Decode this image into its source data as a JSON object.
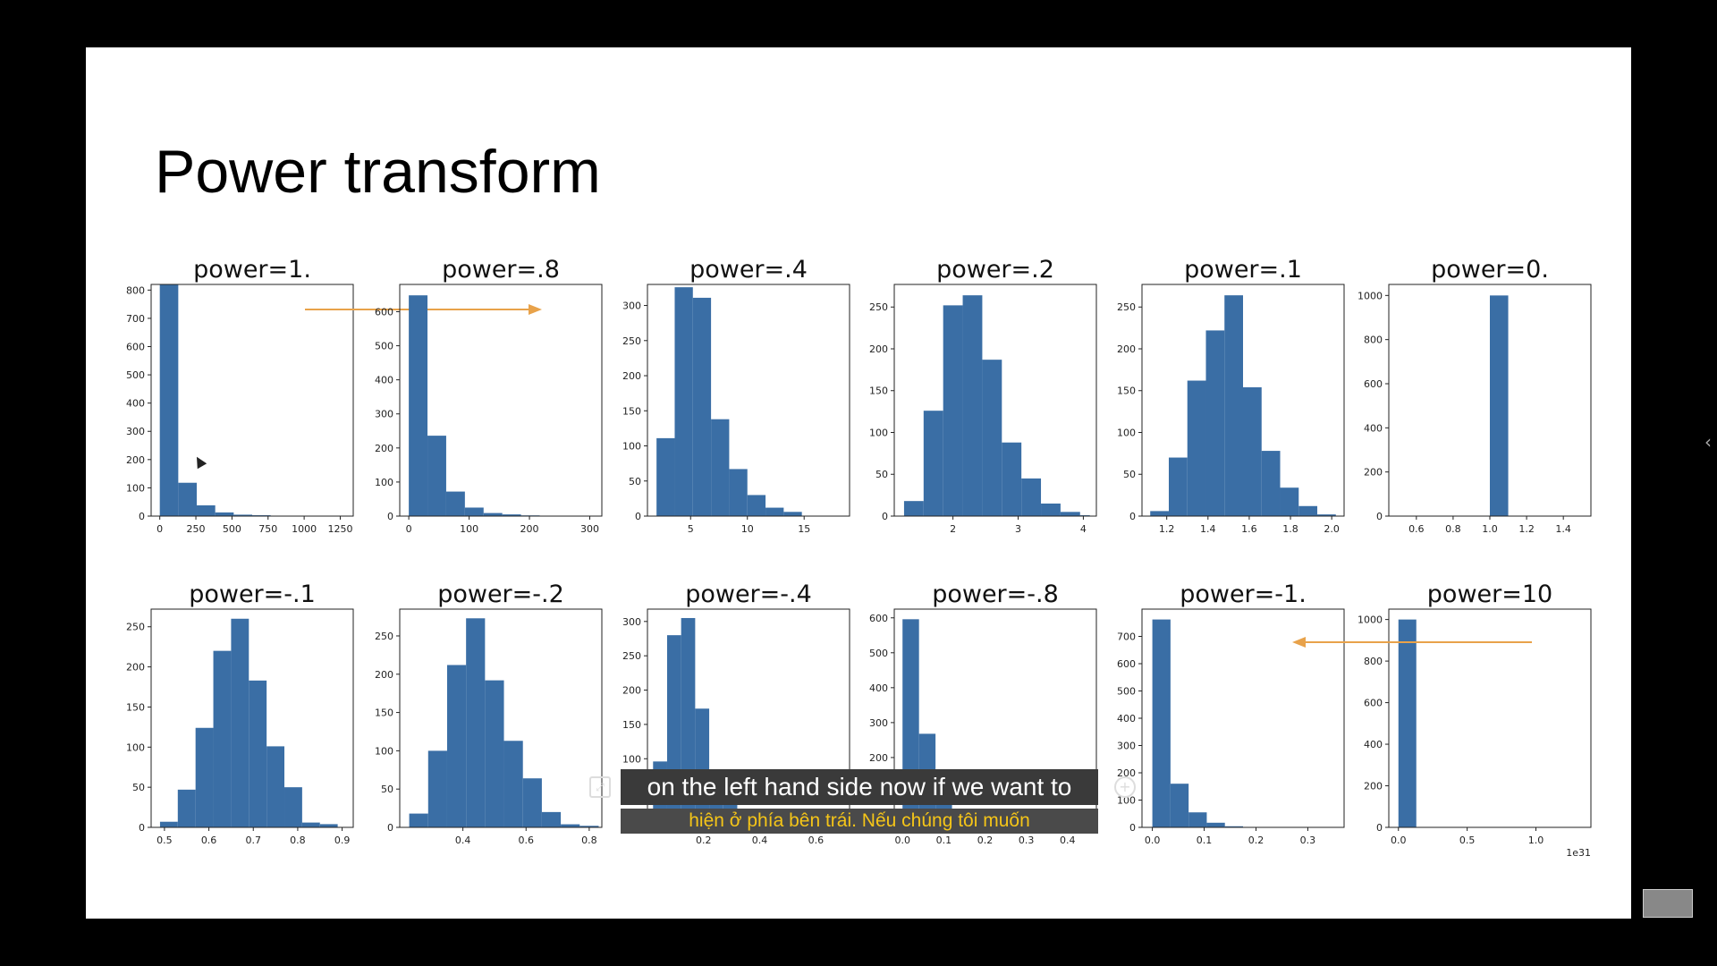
{
  "slide": {
    "title": "Power transform"
  },
  "subtitles": {
    "english": "on the left hand side now if we want to",
    "vietnamese": "hiện ở phía bên trái. Nếu chúng tôi muốn"
  },
  "colors": {
    "bar": "#3a6ea5",
    "arrow": "#e8a24a",
    "background": "#ffffff",
    "frame": "#000000"
  },
  "icons": {
    "cc": "caption-settings-icon",
    "zoom": "zoom-icon",
    "chevron": "chevron-left-icon",
    "cursor": "mouse-pointer-icon"
  },
  "chart_data": [
    {
      "type": "bar",
      "title": "power=1.",
      "x": {
        "ticks": [
          0,
          250,
          500,
          750,
          1000,
          1250
        ],
        "tick_labels": [
          "0",
          "250",
          "500",
          "750",
          "1000",
          "1250"
        ],
        "lim": [
          -60,
          1340
        ]
      },
      "y": {
        "ticks": [
          0,
          100,
          200,
          300,
          400,
          500,
          600,
          700,
          800
        ],
        "tick_labels": [
          "0",
          "100",
          "200",
          "300",
          "400",
          "500",
          "600",
          "700",
          "800"
        ],
        "lim": [
          0,
          820
        ]
      },
      "bins": [
        [
          0,
          128,
          820
        ],
        [
          128,
          256,
          118
        ],
        [
          256,
          384,
          38
        ],
        [
          384,
          512,
          13
        ],
        [
          512,
          640,
          5
        ],
        [
          640,
          768,
          3
        ],
        [
          768,
          896,
          1
        ],
        [
          896,
          1024,
          1
        ],
        [
          1024,
          1152,
          0
        ],
        [
          1152,
          1280,
          1
        ]
      ],
      "annotation": "arrow-right"
    },
    {
      "type": "bar",
      "title": "power=.8",
      "x": {
        "ticks": [
          0,
          100,
          200,
          300
        ],
        "tick_labels": [
          "0",
          "100",
          "200",
          "300"
        ],
        "lim": [
          -15,
          320
        ]
      },
      "y": {
        "ticks": [
          0,
          100,
          200,
          300,
          400,
          500,
          600
        ],
        "tick_labels": [
          "0",
          "100",
          "200",
          "300",
          "400",
          "500",
          "600"
        ],
        "lim": [
          0,
          680
        ]
      },
      "bins": [
        [
          0,
          31,
          648
        ],
        [
          31,
          62,
          236
        ],
        [
          62,
          93,
          72
        ],
        [
          93,
          124,
          25
        ],
        [
          124,
          155,
          9
        ],
        [
          155,
          186,
          5
        ],
        [
          186,
          217,
          2
        ],
        [
          217,
          248,
          1
        ],
        [
          248,
          279,
          1
        ],
        [
          279,
          310,
          1
        ]
      ]
    },
    {
      "type": "bar",
      "title": "power=.4",
      "x": {
        "ticks": [
          5,
          10,
          15
        ],
        "tick_labels": [
          "5",
          "10",
          "15"
        ],
        "lim": [
          1.2,
          19
        ]
      },
      "y": {
        "ticks": [
          0,
          50,
          100,
          150,
          200,
          250,
          300
        ],
        "tick_labels": [
          "0",
          "50",
          "100",
          "150",
          "200",
          "250",
          "300"
        ],
        "lim": [
          0,
          330
        ]
      },
      "bins": [
        [
          2,
          3.6,
          111
        ],
        [
          3.6,
          5.2,
          326
        ],
        [
          5.2,
          6.8,
          311
        ],
        [
          6.8,
          8.4,
          138
        ],
        [
          8.4,
          10,
          67
        ],
        [
          10,
          11.6,
          30
        ],
        [
          11.6,
          13.2,
          12
        ],
        [
          13.2,
          14.8,
          6
        ],
        [
          14.8,
          16.4,
          0
        ],
        [
          16.4,
          18,
          0
        ]
      ]
    },
    {
      "type": "bar",
      "title": "power=.2",
      "x": {
        "ticks": [
          2,
          3,
          4
        ],
        "tick_labels": [
          "2",
          "3",
          "4"
        ],
        "lim": [
          1.1,
          4.2
        ]
      },
      "y": {
        "ticks": [
          0,
          50,
          100,
          150,
          200,
          250
        ],
        "tick_labels": [
          "0",
          "50",
          "100",
          "150",
          "200",
          "250"
        ],
        "lim": [
          0,
          277
        ]
      },
      "bins": [
        [
          1.25,
          1.55,
          18
        ],
        [
          1.55,
          1.85,
          126
        ],
        [
          1.85,
          2.15,
          252
        ],
        [
          2.15,
          2.45,
          264
        ],
        [
          2.45,
          2.75,
          187
        ],
        [
          2.75,
          3.05,
          88
        ],
        [
          3.05,
          3.35,
          45
        ],
        [
          3.35,
          3.65,
          15
        ],
        [
          3.65,
          3.95,
          5
        ],
        [
          3.95,
          4.1,
          1
        ]
      ]
    },
    {
      "type": "bar",
      "title": "power=.1",
      "x": {
        "ticks": [
          1.2,
          1.4,
          1.6,
          1.8,
          2.0
        ],
        "tick_labels": [
          "1.2",
          "1.4",
          "1.6",
          "1.8",
          "2.0"
        ],
        "lim": [
          1.08,
          2.06
        ]
      },
      "y": {
        "ticks": [
          0,
          50,
          100,
          150,
          200,
          250
        ],
        "tick_labels": [
          "0",
          "50",
          "100",
          "150",
          "200",
          "250"
        ],
        "lim": [
          0,
          277
        ]
      },
      "bins": [
        [
          1.12,
          1.21,
          6
        ],
        [
          1.21,
          1.3,
          70
        ],
        [
          1.3,
          1.39,
          162
        ],
        [
          1.39,
          1.48,
          222
        ],
        [
          1.48,
          1.57,
          264
        ],
        [
          1.57,
          1.66,
          154
        ],
        [
          1.66,
          1.75,
          78
        ],
        [
          1.75,
          1.84,
          34
        ],
        [
          1.84,
          1.93,
          12
        ],
        [
          1.93,
          2.02,
          2
        ]
      ]
    },
    {
      "type": "bar",
      "title": "power=0.",
      "x": {
        "ticks": [
          0.6,
          0.8,
          1.0,
          1.2,
          1.4
        ],
        "tick_labels": [
          "0.6",
          "0.8",
          "1.0",
          "1.2",
          "1.4"
        ],
        "lim": [
          0.45,
          1.55
        ]
      },
      "y": {
        "ticks": [
          0,
          200,
          400,
          600,
          800,
          1000
        ],
        "tick_labels": [
          "0",
          "200",
          "400",
          "600",
          "800",
          "1000"
        ],
        "lim": [
          0,
          1050
        ]
      },
      "bins": [
        [
          1.0,
          1.1,
          1000
        ]
      ]
    },
    {
      "type": "bar",
      "title": "power=-.1",
      "x": {
        "ticks": [
          0.5,
          0.6,
          0.7,
          0.8,
          0.9
        ],
        "tick_labels": [
          "0.5",
          "0.6",
          "0.7",
          "0.8",
          "0.9"
        ],
        "lim": [
          0.47,
          0.925
        ]
      },
      "y": {
        "ticks": [
          0,
          50,
          100,
          150,
          200,
          250
        ],
        "tick_labels": [
          "0",
          "50",
          "100",
          "150",
          "200",
          "250"
        ],
        "lim": [
          0,
          272
        ]
      },
      "bins": [
        [
          0.49,
          0.53,
          7
        ],
        [
          0.53,
          0.57,
          47
        ],
        [
          0.57,
          0.61,
          124
        ],
        [
          0.61,
          0.65,
          220
        ],
        [
          0.65,
          0.69,
          260
        ],
        [
          0.69,
          0.73,
          183
        ],
        [
          0.73,
          0.77,
          101
        ],
        [
          0.77,
          0.81,
          50
        ],
        [
          0.81,
          0.85,
          6
        ],
        [
          0.85,
          0.89,
          4
        ]
      ]
    },
    {
      "type": "bar",
      "title": "power=-.2",
      "x": {
        "ticks": [
          0.4,
          0.6,
          0.8
        ],
        "tick_labels": [
          "0.4",
          "0.6",
          "0.8"
        ],
        "lim": [
          0.2,
          0.84
        ]
      },
      "y": {
        "ticks": [
          0,
          50,
          100,
          150,
          200,
          250
        ],
        "tick_labels": [
          "0",
          "50",
          "100",
          "150",
          "200",
          "250"
        ],
        "lim": [
          0,
          285
        ]
      },
      "bins": [
        [
          0.23,
          0.29,
          18
        ],
        [
          0.29,
          0.35,
          100
        ],
        [
          0.35,
          0.41,
          212
        ],
        [
          0.41,
          0.47,
          273
        ],
        [
          0.47,
          0.53,
          192
        ],
        [
          0.53,
          0.59,
          113
        ],
        [
          0.59,
          0.65,
          64
        ],
        [
          0.65,
          0.71,
          20
        ],
        [
          0.71,
          0.77,
          4
        ],
        [
          0.77,
          0.83,
          2
        ]
      ]
    },
    {
      "type": "bar",
      "title": "power=-.4",
      "x": {
        "ticks": [
          0.2,
          0.4,
          0.6
        ],
        "tick_labels": [
          "0.2",
          "0.4",
          "0.6"
        ],
        "lim": [
          0,
          0.72
        ]
      },
      "y": {
        "ticks": [
          0,
          50,
          100,
          150,
          200,
          250,
          300
        ],
        "tick_labels": [
          "0",
          "50",
          "100",
          "150",
          "200",
          "250",
          "300"
        ],
        "lim": [
          0,
          318
        ]
      },
      "bins": [
        [
          0.02,
          0.07,
          96
        ],
        [
          0.07,
          0.12,
          280
        ],
        [
          0.12,
          0.17,
          305
        ],
        [
          0.17,
          0.22,
          173
        ],
        [
          0.22,
          0.27,
          70
        ],
        [
          0.27,
          0.32,
          40
        ],
        [
          0.32,
          0.37,
          20
        ],
        [
          0.37,
          0.42,
          10
        ],
        [
          0.42,
          0.47,
          4
        ],
        [
          0.47,
          0.52,
          2
        ]
      ]
    },
    {
      "type": "bar",
      "title": "power=-.8",
      "x": {
        "ticks": [
          0.0,
          0.1,
          0.2,
          0.3,
          0.4
        ],
        "tick_labels": [
          "0.0",
          "0.1",
          "0.2",
          "0.3",
          "0.4"
        ],
        "lim": [
          -0.02,
          0.47
        ]
      },
      "y": {
        "ticks": [
          0,
          100,
          200,
          300,
          400,
          500,
          600
        ],
        "tick_labels": [
          "0",
          "100",
          "200",
          "300",
          "400",
          "500",
          "600"
        ],
        "lim": [
          0,
          625
        ]
      },
      "bins": [
        [
          0,
          0.04,
          596
        ],
        [
          0.04,
          0.08,
          268
        ],
        [
          0.08,
          0.12,
          80
        ],
        [
          0.12,
          0.16,
          30
        ],
        [
          0.16,
          0.2,
          12
        ],
        [
          0.2,
          0.24,
          6
        ],
        [
          0.24,
          0.28,
          3
        ],
        [
          0.28,
          0.32,
          2
        ],
        [
          0.32,
          0.36,
          1
        ],
        [
          0.36,
          0.4,
          1
        ]
      ]
    },
    {
      "type": "bar",
      "title": "power=-1.",
      "x": {
        "ticks": [
          0.0,
          0.1,
          0.2,
          0.3
        ],
        "tick_labels": [
          "0.0",
          "0.1",
          "0.2",
          "0.3"
        ],
        "lim": [
          -0.02,
          0.37
        ]
      },
      "y": {
        "ticks": [
          0,
          100,
          200,
          300,
          400,
          500,
          600,
          700
        ],
        "tick_labels": [
          "0",
          "100",
          "200",
          "300",
          "400",
          "500",
          "600",
          "700"
        ],
        "lim": [
          0,
          800
        ]
      },
      "bins": [
        [
          0,
          0.035,
          762
        ],
        [
          0.035,
          0.07,
          160
        ],
        [
          0.07,
          0.105,
          55
        ],
        [
          0.105,
          0.14,
          17
        ],
        [
          0.14,
          0.175,
          4
        ],
        [
          0.175,
          0.21,
          1
        ],
        [
          0.21,
          0.245,
          0
        ],
        [
          0.245,
          0.28,
          0
        ],
        [
          0.28,
          0.315,
          0
        ],
        [
          0.315,
          0.35,
          1
        ]
      ]
    },
    {
      "type": "bar",
      "title": "power=10",
      "x": {
        "ticks": [
          0.0,
          0.5,
          1.0
        ],
        "tick_labels": [
          "0.0",
          "0.5",
          "1.0"
        ],
        "lim": [
          -0.07,
          1.4
        ],
        "offset_label": "1e31"
      },
      "y": {
        "ticks": [
          0,
          200,
          400,
          600,
          800,
          1000
        ],
        "tick_labels": [
          "0",
          "200",
          "400",
          "600",
          "800",
          "1000"
        ],
        "lim": [
          0,
          1050
        ]
      },
      "bins": [
        [
          0,
          0.13,
          1000
        ]
      ],
      "annotation": "arrow-left"
    }
  ]
}
